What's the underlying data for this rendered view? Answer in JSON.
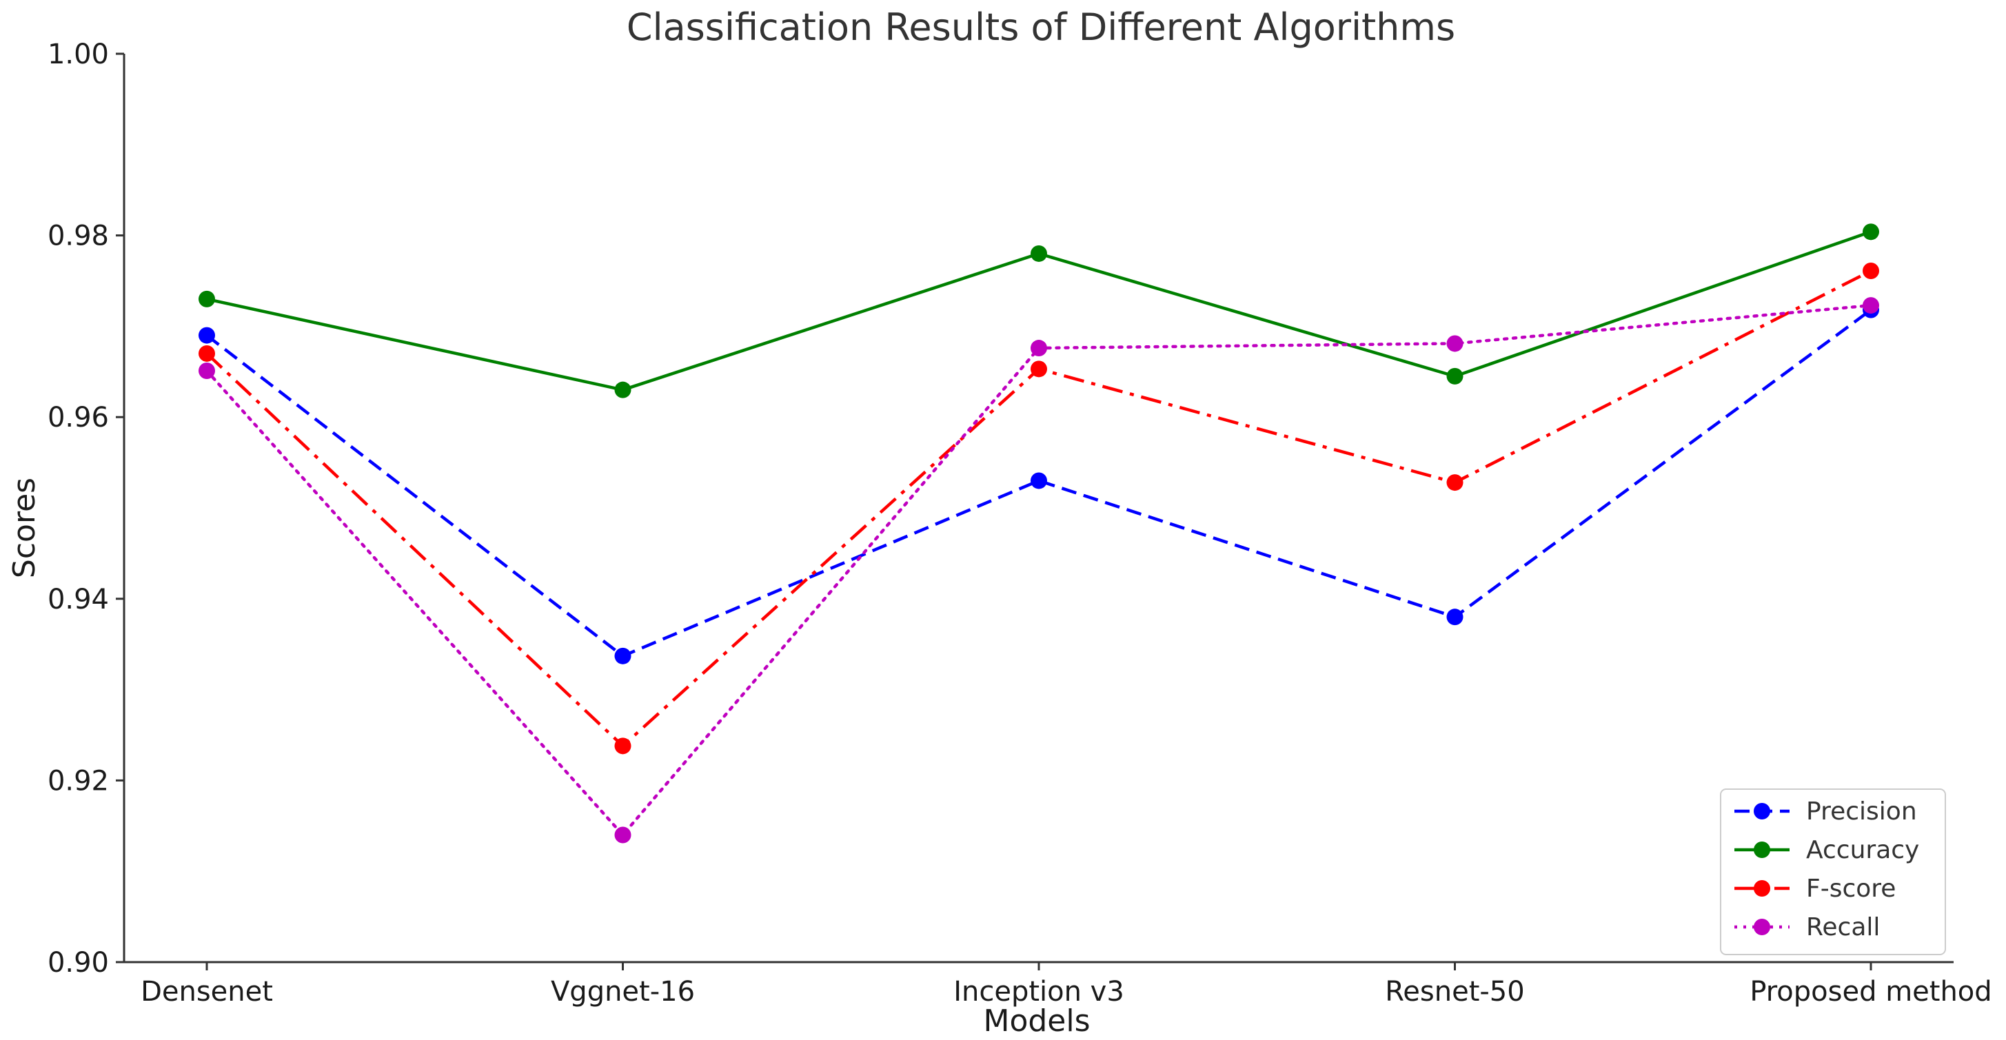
{
  "chart_data": {
    "type": "line",
    "title": "Classification Results of Different Algorithms",
    "xlabel": "Models",
    "ylabel": "Scores",
    "categories": [
      "Densenet",
      "Vggnet-16",
      "Inception v3",
      "Resnet-50",
      "Proposed method"
    ],
    "ylim": [
      0.9,
      1.0
    ],
    "yticks": [
      0.9,
      0.92,
      0.94,
      0.96,
      0.98,
      1.0
    ],
    "ytick_labels": [
      "0.90",
      "0.92",
      "0.94",
      "0.96",
      "0.98",
      "1.00"
    ],
    "grid": false,
    "legend_position": "bottom-right",
    "series": [
      {
        "name": "Precision",
        "color": "#0000ff",
        "linestyle": "dashed",
        "values": [
          0.969,
          0.9337,
          0.953,
          0.938,
          0.9718
        ]
      },
      {
        "name": "Accuracy",
        "color": "#008000",
        "linestyle": "solid",
        "values": [
          0.973,
          0.963,
          0.978,
          0.9645,
          0.9804
        ]
      },
      {
        "name": "F-score",
        "color": "#ff0000",
        "linestyle": "dashdot",
        "values": [
          0.967,
          0.9238,
          0.9653,
          0.9528,
          0.9761
        ]
      },
      {
        "name": "Recall",
        "color": "#bf00bf",
        "linestyle": "dotted",
        "values": [
          0.9651,
          0.914,
          0.9676,
          0.9681,
          0.9723
        ]
      }
    ]
  }
}
